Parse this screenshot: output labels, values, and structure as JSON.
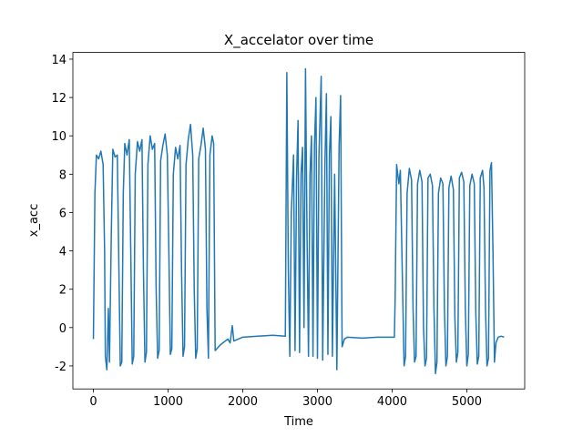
{
  "chart_data": {
    "type": "line",
    "title": "X_accelator over time",
    "xlabel": "Time",
    "ylabel": "x_acc",
    "color": "#1f77b4",
    "x": [
      0,
      20,
      40,
      70,
      100,
      130,
      150,
      160,
      180,
      200,
      215,
      240,
      260,
      290,
      320,
      345,
      360,
      380,
      400,
      420,
      450,
      480,
      500,
      520,
      540,
      560,
      590,
      620,
      650,
      670,
      690,
      710,
      730,
      760,
      790,
      820,
      840,
      860,
      880,
      900,
      930,
      960,
      990,
      1010,
      1030,
      1050,
      1070,
      1100,
      1130,
      1160,
      1180,
      1200,
      1220,
      1240,
      1270,
      1300,
      1330,
      1350,
      1370,
      1390,
      1410,
      1440,
      1470,
      1500,
      1520,
      1540,
      1560,
      1590,
      1610,
      1630,
      1700,
      1800,
      1830,
      1860,
      1880,
      2000,
      2200,
      2400,
      2570,
      2590,
      2610,
      2630,
      2650,
      2680,
      2700,
      2720,
      2740,
      2760,
      2780,
      2800,
      2820,
      2840,
      2860,
      2880,
      2900,
      2920,
      2940,
      2960,
      2980,
      3000,
      3020,
      3050,
      3070,
      3100,
      3120,
      3140,
      3160,
      3180,
      3200,
      3230,
      3260,
      3290,
      3310,
      3330,
      3360,
      3400,
      3600,
      3800,
      4030,
      4040,
      4060,
      4090,
      4110,
      4140,
      4160,
      4180,
      4200,
      4230,
      4260,
      4280,
      4300,
      4320,
      4340,
      4370,
      4400,
      4420,
      4440,
      4460,
      4480,
      4510,
      4540,
      4560,
      4580,
      4600,
      4620,
      4650,
      4680,
      4700,
      4720,
      4740,
      4760,
      4790,
      4820,
      4840,
      4860,
      4880,
      4900,
      4930,
      4960,
      4980,
      5000,
      5020,
      5040,
      5070,
      5100,
      5120,
      5140,
      5160,
      5180,
      5210,
      5230,
      5250,
      5270,
      5290,
      5310,
      5330,
      5350,
      5370,
      5390,
      5420,
      5460,
      5500
    ],
    "values": [
      -0.6,
      7,
      9,
      8.8,
      9.2,
      8.5,
      4,
      -1.5,
      -2.2,
      1,
      -1.8,
      5,
      9.3,
      8.9,
      9,
      2,
      -2,
      -1.8,
      7,
      9.6,
      9,
      9.8,
      4,
      -1.9,
      -1.5,
      8,
      9.7,
      9.2,
      9.8,
      3,
      -1.8,
      -1.3,
      8.5,
      10,
      9.3,
      9.6,
      2,
      -1.6,
      -1.2,
      8.7,
      9.5,
      10.1,
      9,
      4,
      -1.4,
      -1.1,
      8,
      9.4,
      8.8,
      9.5,
      3,
      -1.5,
      -1,
      8.5,
      9.8,
      10.6,
      9,
      2,
      -1.6,
      -1.1,
      8.8,
      9.5,
      10.4,
      9.3,
      1,
      -1.6,
      9,
      10,
      9.6,
      -1.2,
      -0.9,
      -0.6,
      -0.8,
      0.1,
      -0.7,
      -0.5,
      -0.45,
      -0.4,
      -0.45,
      13.3,
      3,
      -1.5,
      6,
      9,
      -1.2,
      7.8,
      10.8,
      -1.3,
      8,
      9.4,
      0,
      13.5,
      5,
      -1.5,
      8,
      10,
      -1.5,
      9.5,
      12,
      -1.6,
      9,
      13.1,
      -1.7,
      8.5,
      12.2,
      -1.4,
      9,
      11,
      -1.5,
      8,
      -2.2,
      9.5,
      12.1,
      -1,
      -0.6,
      -0.5,
      -0.55,
      -0.5,
      -0.5,
      1.5,
      8.5,
      7.5,
      8.2,
      2,
      -2,
      -1.5,
      7,
      8.3,
      7.7,
      1,
      -1.8,
      -1.5,
      7.5,
      8.2,
      7.6,
      0,
      -2,
      -1.6,
      7.8,
      8,
      7.4,
      1,
      -2.4,
      -1.8,
      7,
      7.8,
      7.5,
      1,
      -2,
      -1.5,
      7.3,
      7.9,
      7.2,
      0.5,
      -1.8,
      -1.3,
      7.8,
      8.1,
      7.6,
      1,
      -2,
      -1.4,
      7.4,
      8,
      7.5,
      0.8,
      -1.9,
      -1.5,
      7.8,
      8.2,
      7.3,
      1,
      -2,
      -1.6,
      8.2,
      8.6,
      4,
      -1.8,
      -0.8,
      -0.5,
      -0.45,
      -0.5
    ],
    "xlim": [
      -275,
      5775
    ],
    "xticks": [
      0,
      1000,
      2000,
      3000,
      4000,
      5000
    ],
    "ylim": [
      -3.2,
      14.35
    ],
    "yticks": [
      -2,
      0,
      2,
      4,
      6,
      8,
      10,
      12,
      14
    ]
  }
}
